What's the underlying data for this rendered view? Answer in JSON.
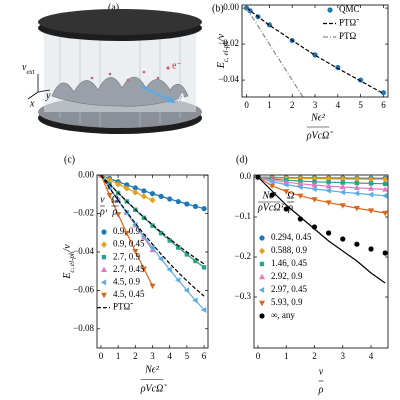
{
  "illustration": {
    "panel_label": "(a)",
    "potential": {
      "main": "v",
      "sub": "ext"
    },
    "x_axis": "x",
    "y_axis": "y",
    "electron": "e⁻",
    "vector_potential": "A"
  },
  "chart_data": [
    {
      "panel_label": "(b)",
      "type": "line",
      "ylabel": {
        "main": "E",
        "sub": "c, el-ph",
        "rest": "/v"
      },
      "xlabel": {
        "numerator": "Nϵ²",
        "denominator": "ρVcΩ̃"
      },
      "xlim": [
        -0.2,
        6.2
      ],
      "ylim": [
        -0.0494,
        0.0017
      ],
      "xticks": [
        0,
        1,
        2,
        3,
        4,
        5,
        6
      ],
      "yticks": [
        {
          "value": 0,
          "label": "0.00"
        },
        {
          "value": -0.02,
          "label": "−0.02"
        },
        {
          "value": -0.04,
          "label": "−0.04"
        }
      ],
      "legend_loc": "upper right",
      "series": [
        {
          "name": "QMC",
          "color": "#1f77b4",
          "marker": "circle",
          "line": "none",
          "x": [
            0,
            0.15,
            0.5,
            1,
            2,
            3,
            4,
            5,
            6
          ],
          "values": [
            0,
            -0.0015,
            -0.0048,
            -0.0093,
            -0.018,
            -0.026,
            -0.033,
            -0.04,
            -0.047
          ]
        },
        {
          "name": "PTΩ̃",
          "color": "#000000",
          "marker": "none",
          "line": "dashed",
          "x": [
            0,
            1,
            2,
            3,
            4,
            5,
            6
          ],
          "values": [
            0,
            -0.0095,
            -0.018,
            -0.0262,
            -0.0335,
            -0.0405,
            -0.0475
          ]
        },
        {
          "name": "PTΩ",
          "color": "#888888",
          "marker": "none",
          "line": "dashdot",
          "x": [
            0,
            2.5
          ],
          "values": [
            0,
            -0.05
          ]
        }
      ]
    },
    {
      "panel_label": "(c)",
      "type": "line",
      "ylabel": {
        "main": "E",
        "sub": "c, el-ph",
        "rest": "/v"
      },
      "xlabel": {
        "numerator": "Nϵ²",
        "denominator": "ρVcΩ̃"
      },
      "xlim": [
        -0.23,
        6.23
      ],
      "ylim": [
        -0.09,
        0.0001
      ],
      "xticks": [
        0,
        1,
        2,
        3,
        4,
        5,
        6
      ],
      "yticks": [
        {
          "value": 0,
          "label": "0.00"
        },
        {
          "value": -0.02,
          "label": "−0.02"
        },
        {
          "value": -0.04,
          "label": "−0.04"
        },
        {
          "value": -0.06,
          "label": "−0.06"
        },
        {
          "value": -0.08,
          "label": "−0.08"
        }
      ],
      "legend_loc": "lower left",
      "legend_title": [
        {
          "numerator": "v",
          "denominator": "ρ",
          "suffix": ","
        },
        {
          "numerator": "Ω",
          "denominator": "ρ"
        }
      ],
      "x": [
        0,
        0.5,
        1,
        1.5,
        2,
        2.5,
        3,
        3.5,
        4,
        4.5,
        5,
        5.5,
        6
      ],
      "series": [
        {
          "name": "0.9, 0.9",
          "color": "#1f77b4",
          "marker": "circle",
          "line": "solid",
          "values": [
            0,
            -0.00173,
            -0.0034,
            -0.00503,
            -0.0066,
            -0.00813,
            -0.0096,
            -0.01103,
            -0.0124,
            -0.01373,
            -0.015,
            -0.01623,
            -0.0174
          ]
        },
        {
          "name": "0.9, 0.45",
          "color": "#e6a020",
          "marker": "diamond",
          "line": "solid",
          "values": [
            0,
            -0.0024,
            -0.0047,
            -0.0069,
            -0.009,
            -0.011,
            -0.013,
            null,
            null,
            null,
            null,
            null,
            null
          ]
        },
        {
          "name": "2.7, 0.9",
          "color": "#2ca089",
          "marker": "square",
          "line": "solid",
          "values": [
            0,
            -0.00469,
            -0.00925,
            -0.01369,
            -0.018,
            -0.02219,
            -0.02625,
            -0.03019,
            -0.034,
            -0.03769,
            -0.04125,
            -0.04469,
            -0.048
          ]
        },
        {
          "name": "2.7, 0.45",
          "color": "#e377c2",
          "marker": "triangle-up",
          "line": "solid",
          "values": [
            0,
            -0.0065,
            -0.013,
            -0.0195,
            -0.026,
            -0.0325,
            -0.039,
            null,
            null,
            null,
            null,
            null,
            null
          ]
        },
        {
          "name": "4.5, 0.9",
          "color": "#5dade2",
          "marker": "triangle-left",
          "line": "solid",
          "values": [
            0,
            -0.00668,
            -0.0132,
            -0.01958,
            -0.0258,
            -0.03188,
            -0.0378,
            -0.04358,
            -0.0492,
            -0.05468,
            -0.06,
            -0.06518,
            -0.0702
          ]
        },
        {
          "name": "4.5, 0.45",
          "color": "#d9661f",
          "marker": "triangle-down",
          "line": "solid",
          "values": [
            0,
            -0.01035,
            -0.0204,
            -0.03015,
            -0.0396,
            -0.04875,
            -0.0576,
            null,
            null,
            null,
            null,
            null,
            null
          ]
        },
        {
          "name": "PTΩ̃",
          "color": "#000000",
          "marker": "none",
          "line": "dashed",
          "values": [
            0,
            -0.00468,
            -0.0092,
            -0.01358,
            -0.0178,
            -0.02188,
            -0.0258,
            -0.02958,
            -0.0332,
            -0.03668,
            -0.04,
            -0.04318,
            -0.0462
          ]
        },
        {
          "color": "#000000",
          "marker": "none",
          "line": "dashed",
          "values": [
            0,
            -0.00663,
            -0.013,
            -0.01913,
            -0.025,
            -0.03063,
            -0.036,
            -0.04113,
            -0.046,
            -0.05063,
            -0.055,
            -0.05913,
            -0.063
          ]
        }
      ]
    },
    {
      "panel_label": "(d)",
      "type": "line",
      "xlabel": {
        "numerator": "v",
        "denominator": "ρ"
      },
      "xlim": [
        -0.14,
        4.6
      ],
      "ylim": [
        -0.4275,
        0.005
      ],
      "xticks": [
        0,
        1,
        2,
        3,
        4
      ],
      "yticks": [
        {
          "value": 0,
          "label": "0.0"
        },
        {
          "value": -0.1,
          "label": "−0.1"
        },
        {
          "value": -0.2,
          "label": "−0.2"
        },
        {
          "value": -0.3,
          "label": "−0.3"
        }
      ],
      "legend_loc": "lower left",
      "legend_title": [
        {
          "numerator": "Nϵ²",
          "denominator": "ρVcΩ̃",
          "suffix": ","
        },
        {
          "numerator": "Ω",
          "denominator": "ρ"
        }
      ],
      "x": [
        0,
        0.5,
        1,
        1.5,
        2,
        2.5,
        3,
        3.5,
        4,
        4.5
      ],
      "series": [
        {
          "name": "0.294, 0.45",
          "color": "#1f77b4",
          "marker": "circle",
          "line": "solid",
          "values": [
            0,
            -0.001,
            -0.0015,
            -0.002,
            -0.002,
            -0.0025,
            -0.0025,
            -0.003,
            -0.003,
            -0.003
          ]
        },
        {
          "name": "0.588, 0.9",
          "color": "#e6a020",
          "marker": "diamond",
          "line": "solid",
          "values": [
            0,
            -0.002,
            -0.003,
            -0.0035,
            -0.004,
            -0.0045,
            -0.005,
            -0.005,
            -0.0055,
            -0.0055
          ]
        },
        {
          "name": "1.46, 0.45",
          "color": "#2ca089",
          "marker": "square",
          "line": "solid",
          "values": [
            0,
            -0.005,
            -0.008,
            -0.01,
            -0.012,
            -0.013,
            -0.014,
            -0.015,
            -0.016,
            -0.017
          ]
        },
        {
          "name": "2.92, 0.9",
          "color": "#e377c2",
          "marker": "triangle-up",
          "line": "solid",
          "values": [
            0,
            -0.008,
            -0.013,
            -0.017,
            -0.02,
            -0.023,
            -0.025,
            -0.027,
            -0.029,
            -0.031
          ]
        },
        {
          "name": "2.97, 0.45",
          "color": "#5dade2",
          "marker": "triangle-left",
          "line": "solid",
          "values": [
            0,
            -0.012,
            -0.019,
            -0.025,
            -0.03,
            -0.034,
            -0.038,
            -0.041,
            -0.044,
            -0.047
          ]
        },
        {
          "name": "5.93, 0.9",
          "color": "#d9661f",
          "marker": "triangle-down",
          "line": "solid",
          "values": [
            0,
            -0.022,
            -0.036,
            -0.047,
            -0.056,
            -0.064,
            -0.071,
            -0.078,
            -0.084,
            -0.09
          ]
        },
        {
          "name": "∞, any",
          "color": "#000000",
          "marker": "circle",
          "line": "none",
          "values": [
            0,
            -0.045,
            -0.08,
            -0.105,
            -0.125,
            -0.14,
            -0.155,
            -0.168,
            -0.18,
            -0.19
          ]
        },
        {
          "color": "#000000",
          "marker": "none",
          "line": "solid",
          "values": [
            0,
            -0.035,
            -0.07,
            -0.1,
            -0.13,
            -0.16,
            -0.185,
            -0.21,
            -0.24,
            -0.265
          ]
        }
      ]
    }
  ]
}
